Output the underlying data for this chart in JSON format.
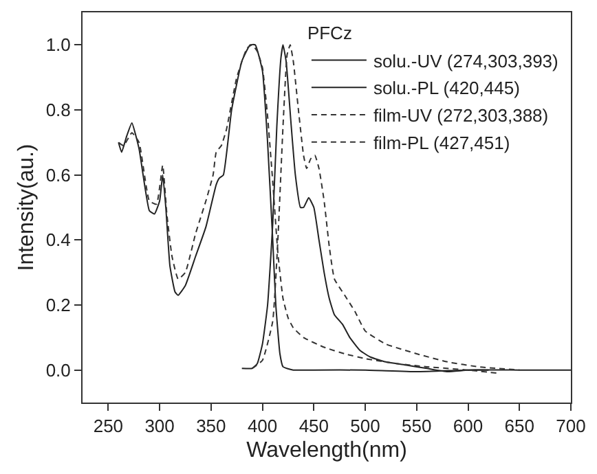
{
  "chart_data": {
    "type": "line",
    "xlabel": "Wavelength(nm)",
    "ylabel": "Intensity(au.)",
    "legend_title": "PFCz",
    "legend": "top right",
    "xlim": [
      225,
      700
    ],
    "ylim": [
      -0.1,
      1.1
    ],
    "xticks": [
      250,
      300,
      350,
      400,
      450,
      500,
      550,
      600,
      650,
      700
    ],
    "yticks": [
      {
        "value": 0,
        "label": "0.0"
      },
      0.2,
      0.4,
      0.6,
      0.8,
      {
        "value": 1,
        "label": "1.0"
      }
    ],
    "series": [
      {
        "name": "solu.-UV (274,303,393)",
        "color": "#222222",
        "line_style": "solid",
        "x": [
          260,
          263,
          268,
          273,
          280,
          290,
          295,
          300,
          303,
          306,
          310,
          315,
          318,
          325,
          335,
          345,
          355,
          358,
          362,
          370,
          380,
          388,
          393,
          400,
          405,
          410,
          413,
          417,
          420,
          430,
          450,
          500,
          550,
          600,
          620
        ],
        "values": [
          0.7,
          0.67,
          0.72,
          0.76,
          0.68,
          0.49,
          0.48,
          0.52,
          0.6,
          0.5,
          0.32,
          0.24,
          0.23,
          0.26,
          0.35,
          0.44,
          0.57,
          0.59,
          0.6,
          0.8,
          0.95,
          1.0,
          1.0,
          0.92,
          0.7,
          0.4,
          0.2,
          0.05,
          0.01,
          0.0,
          0.0,
          0.0,
          -0.005,
          0.0,
          0.0
        ]
      },
      {
        "name": "solu.-PL (420,445)",
        "color": "#222222",
        "line_style": "solid",
        "x": [
          380,
          390,
          395,
          400,
          405,
          410,
          414,
          418,
          420,
          423,
          428,
          432,
          437,
          440,
          445,
          450,
          455,
          460,
          465,
          470,
          478,
          485,
          495,
          505,
          520,
          540,
          560,
          580,
          600,
          650,
          700
        ],
        "values": [
          0.005,
          0.005,
          0.02,
          0.08,
          0.2,
          0.45,
          0.75,
          0.96,
          1.0,
          0.95,
          0.75,
          0.6,
          0.5,
          0.5,
          0.53,
          0.5,
          0.4,
          0.3,
          0.22,
          0.17,
          0.14,
          0.1,
          0.06,
          0.04,
          0.025,
          0.015,
          0.005,
          -0.005,
          0.0,
          0.0,
          0.0
        ]
      },
      {
        "name": "film-UV (272,303,388)",
        "color": "#333333",
        "line_style": "dashed",
        "x": [
          260,
          265,
          273,
          280,
          290,
          297,
          303,
          307,
          312,
          318,
          325,
          335,
          345,
          352,
          355,
          360,
          365,
          375,
          385,
          390,
          395,
          400,
          405,
          410,
          415,
          420,
          425,
          430,
          440,
          460,
          480,
          500,
          530,
          560,
          600,
          630
        ],
        "values": [
          0.7,
          0.69,
          0.73,
          0.7,
          0.52,
          0.51,
          0.63,
          0.48,
          0.35,
          0.28,
          0.3,
          0.42,
          0.52,
          0.6,
          0.67,
          0.69,
          0.74,
          0.9,
          0.99,
          1.0,
          0.98,
          0.93,
          0.78,
          0.58,
          0.36,
          0.22,
          0.16,
          0.13,
          0.1,
          0.07,
          0.05,
          0.035,
          0.02,
          0.01,
          0.0,
          -0.01
        ]
      },
      {
        "name": "film-PL (427,451)",
        "color": "#333333",
        "line_style": "dashed",
        "x": [
          390,
          400,
          410,
          415,
          420,
          424,
          427,
          430,
          435,
          440,
          443,
          447,
          451,
          455,
          460,
          465,
          470,
          480,
          490,
          500,
          520,
          550,
          580,
          610,
          650
        ],
        "values": [
          0.005,
          0.03,
          0.15,
          0.4,
          0.75,
          0.97,
          1.0,
          0.95,
          0.8,
          0.66,
          0.62,
          0.65,
          0.66,
          0.62,
          0.52,
          0.38,
          0.28,
          0.23,
          0.18,
          0.12,
          0.08,
          0.05,
          0.025,
          0.01,
          0.0
        ]
      }
    ]
  }
}
